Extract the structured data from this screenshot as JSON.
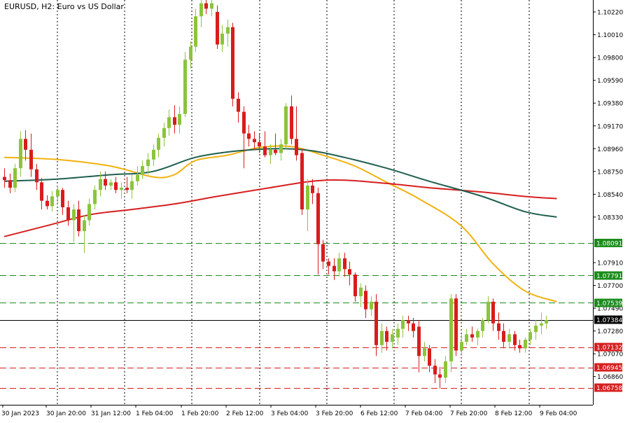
{
  "chart_title": "EURUSD, H2:  Euro vs US Dollar",
  "colors": {
    "background": "#ffffff",
    "axis": "#000000",
    "grid": "#000000",
    "bull_candle": "#8cc43c",
    "bear_candle": "#d91c1c",
    "ma_fast": "#f2b10f",
    "ma_medium": "#d61f1f",
    "ma_slow": "#1f5f4f",
    "level_support": "#d61f1f",
    "level_resistance": "#1b8b1b",
    "current_price_line": "#000000",
    "current_price_label_bg": "#000000",
    "label_text": "#ffffff"
  },
  "chart_data": {
    "type": "candlestick",
    "symbol": "EURUSD",
    "timeframe": "H2",
    "ylim": [
      1.066,
      1.1033
    ],
    "y_ticks": [
      "1.10220",
      "1.10010",
      "1.09800",
      "1.09590",
      "1.09380",
      "1.09170",
      "1.08960",
      "1.08750",
      "1.08540",
      "1.08330",
      "1.07910",
      "1.07700",
      "1.07490",
      "1.07280",
      "1.07070",
      "1.06860"
    ],
    "x_tick_labels": [
      "30 Jan 2023",
      "30 Jan 20:00",
      "31 Jan 12:00",
      "1 Feb 04:00",
      "1 Feb 20:00",
      "2 Feb 12:00",
      "3 Feb 04:00",
      "3 Feb 20:00",
      "6 Feb 12:00",
      "7 Feb 04:00",
      "7 Feb 20:00",
      "8 Feb 12:00",
      "9 Feb 04:00"
    ],
    "current_price": "1.07384",
    "horizontal_levels": [
      {
        "price": "1.08091",
        "kind": "resistance"
      },
      {
        "price": "1.07791",
        "kind": "resistance"
      },
      {
        "price": "1.07539",
        "kind": "resistance"
      },
      {
        "price": "1.07132",
        "kind": "support"
      },
      {
        "price": "1.06945",
        "kind": "support"
      },
      {
        "price": "1.06758",
        "kind": "support"
      }
    ],
    "candles_ohlc": [
      [
        1.087,
        1.0878,
        1.086,
        1.0867
      ],
      [
        1.0867,
        1.0873,
        1.0855,
        1.086
      ],
      [
        1.086,
        1.0882,
        1.0856,
        1.0878
      ],
      [
        1.0878,
        1.0912,
        1.087,
        1.0905
      ],
      [
        1.0905,
        1.0913,
        1.0885,
        1.0895
      ],
      [
        1.0895,
        1.091,
        1.087,
        1.0877
      ],
      [
        1.0877,
        1.0882,
        1.0858,
        1.0865
      ],
      [
        1.0865,
        1.0869,
        1.084,
        1.0848
      ],
      [
        1.0848,
        1.0853,
        1.084,
        1.0843
      ],
      [
        1.0843,
        1.0857,
        1.0838,
        1.0852
      ],
      [
        1.0852,
        1.0862,
        1.0845,
        1.0858
      ],
      [
        1.0858,
        1.086,
        1.0835,
        1.0842
      ],
      [
        1.0842,
        1.0848,
        1.0825,
        1.083
      ],
      [
        1.083,
        1.0845,
        1.081,
        1.084
      ],
      [
        1.084,
        1.0848,
        1.0815,
        1.082
      ],
      [
        1.082,
        1.0835,
        1.08,
        1.083
      ],
      [
        1.083,
        1.085,
        1.0825,
        1.0845
      ],
      [
        1.0845,
        1.0862,
        1.084,
        1.0858
      ],
      [
        1.0858,
        1.0875,
        1.0852,
        1.0868
      ],
      [
        1.0868,
        1.0875,
        1.0858,
        1.0862
      ],
      [
        1.0862,
        1.0868,
        1.0858,
        1.0865
      ],
      [
        1.0865,
        1.087,
        1.0855,
        1.0858
      ],
      [
        1.0858,
        1.0865,
        1.085,
        1.086
      ],
      [
        1.086,
        1.087,
        1.0855,
        1.0858
      ],
      [
        1.0858,
        1.0872,
        1.085,
        1.0866
      ],
      [
        1.0866,
        1.088,
        1.0862,
        1.0872
      ],
      [
        1.0872,
        1.0885,
        1.0868,
        1.088
      ],
      [
        1.088,
        1.0892,
        1.0872,
        1.0886
      ],
      [
        1.0886,
        1.09,
        1.088,
        1.0895
      ],
      [
        1.0895,
        1.091,
        1.0888,
        1.0906
      ],
      [
        1.0906,
        1.092,
        1.0898,
        1.0915
      ],
      [
        1.0915,
        1.0932,
        1.0908,
        1.0925
      ],
      [
        1.0925,
        1.0936,
        1.091,
        1.0918
      ],
      [
        1.0918,
        1.0935,
        1.091,
        1.0928
      ],
      [
        1.0928,
        1.0985,
        1.0925,
        1.0978
      ],
      [
        1.0978,
        1.0995,
        1.097,
        1.099
      ],
      [
        1.099,
        1.1025,
        1.0985,
        1.1018
      ],
      [
        1.1018,
        1.1042,
        1.1008,
        1.103
      ],
      [
        1.103,
        1.1038,
        1.102,
        1.1025
      ],
      [
        1.1025,
        1.1035,
        1.1018,
        1.103
      ],
      [
        1.1022,
        1.1028,
        1.0988,
        1.0992
      ],
      [
        1.0992,
        1.101,
        1.0985,
        1.1002
      ],
      [
        1.1002,
        1.1015,
        1.099,
        1.1008
      ],
      [
        1.1008,
        1.1012,
        1.0935,
        1.0942
      ],
      [
        1.0942,
        1.0948,
        1.092,
        1.093
      ],
      [
        1.093,
        1.0935,
        1.0878,
        1.091
      ],
      [
        1.091,
        1.0918,
        1.0898,
        1.0905
      ],
      [
        1.0905,
        1.0912,
        1.0895,
        1.0902
      ],
      [
        1.0902,
        1.091,
        1.0892,
        1.0898
      ],
      [
        1.0898,
        1.0912,
        1.0888,
        1.089
      ],
      [
        1.089,
        1.09,
        1.0882,
        1.0895
      ],
      [
        1.0895,
        1.091,
        1.089,
        1.0892
      ],
      [
        1.0892,
        1.0905,
        1.0885,
        1.09
      ],
      [
        1.09,
        1.0938,
        1.0895,
        1.0935
      ],
      [
        1.0935,
        1.0945,
        1.09,
        1.0905
      ],
      [
        1.0905,
        1.0935,
        1.0885,
        1.089
      ],
      [
        1.0892,
        1.0896,
        1.0835,
        1.084
      ],
      [
        1.084,
        1.0868,
        1.082,
        1.0862
      ],
      [
        1.0862,
        1.0868,
        1.0845,
        1.0855
      ],
      [
        1.0855,
        1.086,
        1.078,
        1.0808
      ],
      [
        1.0808,
        1.0812,
        1.0785,
        1.0792
      ],
      [
        1.0792,
        1.0795,
        1.078,
        1.0788
      ],
      [
        1.0788,
        1.0795,
        1.0775,
        1.0783
      ],
      [
        1.0783,
        1.08,
        1.0778,
        1.0795
      ],
      [
        1.0795,
        1.08,
        1.0778,
        1.0785
      ],
      [
        1.0785,
        1.0792,
        1.077,
        1.078
      ],
      [
        1.078,
        1.0782,
        1.0755,
        1.076
      ],
      [
        1.076,
        1.0772,
        1.075,
        1.0768
      ],
      [
        1.0765,
        1.077,
        1.074,
        1.0748
      ],
      [
        1.0748,
        1.076,
        1.0742,
        1.0755
      ],
      [
        1.0755,
        1.0762,
        1.0705,
        1.0715
      ],
      [
        1.0715,
        1.0735,
        1.0708,
        1.0728
      ],
      [
        1.0728,
        1.0732,
        1.071,
        1.0718
      ],
      [
        1.0718,
        1.073,
        1.0712,
        1.0725
      ],
      [
        1.0722,
        1.0735,
        1.0715,
        1.073
      ],
      [
        1.073,
        1.0742,
        1.0722,
        1.0738
      ],
      [
        1.0738,
        1.0742,
        1.0728,
        1.0735
      ],
      [
        1.0735,
        1.074,
        1.0722,
        1.0728
      ],
      [
        1.0732,
        1.0738,
        1.069,
        1.0705
      ],
      [
        1.0705,
        1.0718,
        1.07,
        1.0712
      ],
      [
        1.0712,
        1.0715,
        1.069,
        1.0696
      ],
      [
        1.0696,
        1.0702,
        1.068,
        1.0688
      ],
      [
        1.0688,
        1.0695,
        1.0675,
        1.0685
      ],
      [
        1.0685,
        1.0705,
        1.068,
        1.07
      ],
      [
        1.07,
        1.0762,
        1.069,
        1.0758
      ],
      [
        1.0758,
        1.0762,
        1.0705,
        1.071
      ],
      [
        1.071,
        1.0725,
        1.0705,
        1.0718
      ],
      [
        1.0718,
        1.073,
        1.0715,
        1.0725
      ],
      [
        1.0725,
        1.0732,
        1.0718,
        1.0722
      ],
      [
        1.0722,
        1.073,
        1.0715,
        1.0728
      ],
      [
        1.0728,
        1.074,
        1.0722,
        1.0738
      ],
      [
        1.0738,
        1.076,
        1.0735,
        1.0755
      ],
      [
        1.0755,
        1.0758,
        1.0728,
        1.0735
      ],
      [
        1.0735,
        1.0745,
        1.072,
        1.0728
      ],
      [
        1.0728,
        1.0735,
        1.0712,
        1.0718
      ],
      [
        1.0718,
        1.073,
        1.0712,
        1.0725
      ],
      [
        1.0725,
        1.0728,
        1.071,
        1.0715
      ],
      [
        1.0715,
        1.072,
        1.0708,
        1.0712
      ],
      [
        1.0712,
        1.0722,
        1.0708,
        1.072
      ],
      [
        1.072,
        1.073,
        1.0715,
        1.0727
      ],
      [
        1.0727,
        1.0738,
        1.072,
        1.0733
      ],
      [
        1.0733,
        1.0745,
        1.0725,
        1.0735
      ],
      [
        1.0735,
        1.0742,
        1.073,
        1.0738
      ]
    ],
    "ma_series": [
      {
        "key": "ma_fast",
        "points": [
          [
            0,
            1.0888
          ],
          [
            10,
            1.0886
          ],
          [
            20,
            1.088
          ],
          [
            28,
            1.087
          ],
          [
            32,
            1.0872
          ],
          [
            36,
            1.0885
          ],
          [
            42,
            1.089
          ],
          [
            48,
            1.0897
          ],
          [
            54,
            1.0898
          ],
          [
            60,
            1.089
          ],
          [
            66,
            1.088
          ],
          [
            72,
            1.0865
          ],
          [
            78,
            1.085
          ],
          [
            86,
            1.0825
          ],
          [
            92,
            1.079
          ],
          [
            98,
            1.0765
          ],
          [
            104,
            1.0755
          ]
        ]
      },
      {
        "key": "ma_medium",
        "points": [
          [
            0,
            1.0815
          ],
          [
            8,
            1.0825
          ],
          [
            16,
            1.0835
          ],
          [
            24,
            1.084
          ],
          [
            32,
            1.0845
          ],
          [
            40,
            1.0852
          ],
          [
            50,
            1.086
          ],
          [
            58,
            1.0866
          ],
          [
            64,
            1.0867
          ],
          [
            72,
            1.0864
          ],
          [
            80,
            1.086
          ],
          [
            90,
            1.0856
          ],
          [
            98,
            1.0852
          ],
          [
            104,
            1.085
          ]
        ]
      },
      {
        "key": "ma_slow",
        "points": [
          [
            0,
            1.0866
          ],
          [
            10,
            1.0868
          ],
          [
            20,
            1.0872
          ],
          [
            28,
            1.0875
          ],
          [
            36,
            1.0888
          ],
          [
            44,
            1.0894
          ],
          [
            52,
            1.0896
          ],
          [
            58,
            1.0894
          ],
          [
            64,
            1.0888
          ],
          [
            72,
            1.0878
          ],
          [
            80,
            1.0866
          ],
          [
            90,
            1.0852
          ],
          [
            98,
            1.0838
          ],
          [
            104,
            1.0833
          ]
        ]
      }
    ]
  }
}
